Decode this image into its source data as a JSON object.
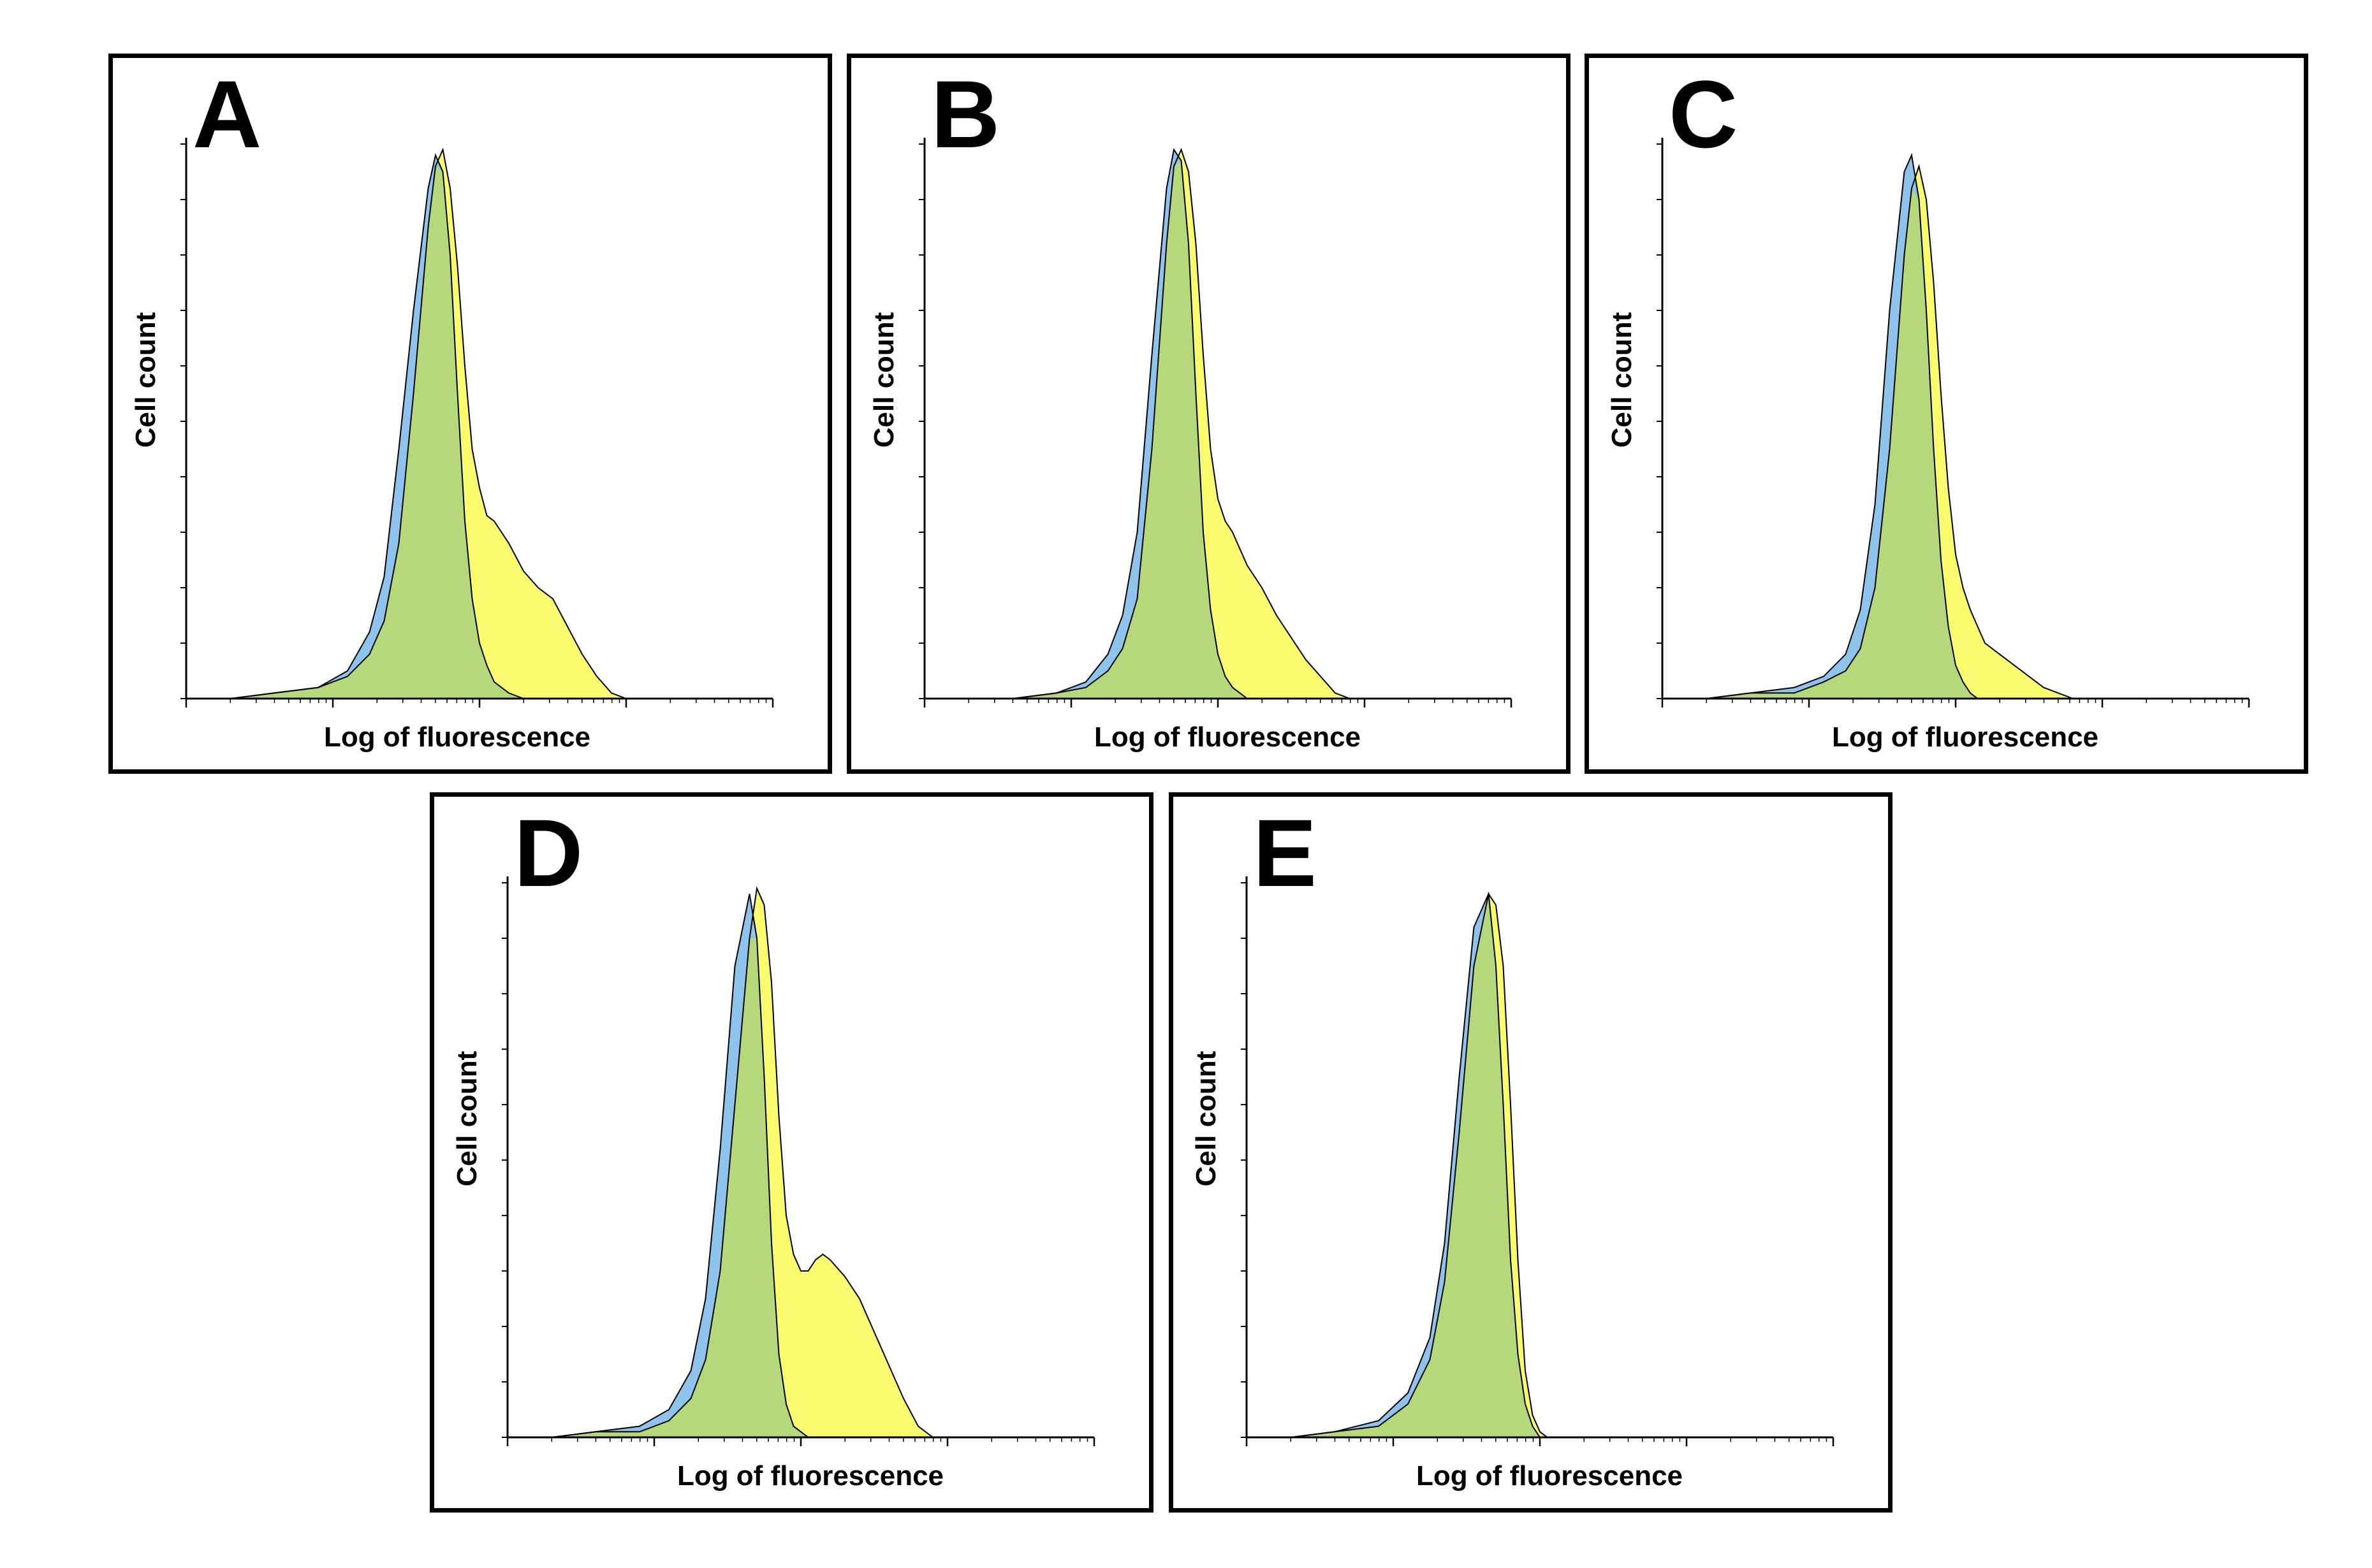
{
  "colors": {
    "control_fill": "#8ec3ec",
    "sample_fill": "#fafa6e",
    "overlap_fill": "#b5d97a",
    "outline": "#000000",
    "frame": "#000000"
  },
  "chart_data": [
    {
      "type": "area",
      "panel": "A",
      "xlabel": "Log of fluorescence",
      "ylabel": "Cell count",
      "x_scale": "log",
      "xlim": [
        0,
        4
      ],
      "ylim": [
        0,
        100
      ],
      "series": [
        {
          "role": "control",
          "x": [
            0.0,
            0.3,
            0.6,
            0.9,
            1.1,
            1.25,
            1.35,
            1.45,
            1.55,
            1.65,
            1.7,
            1.75,
            1.8,
            1.85,
            1.9,
            1.95,
            2.0,
            2.05,
            2.1,
            2.15,
            2.2,
            2.3,
            2.4,
            2.5,
            2.6,
            2.7,
            2.8,
            2.9,
            3.0,
            4.0
          ],
          "y": [
            0,
            0,
            1,
            2,
            5,
            12,
            22,
            45,
            70,
            92,
            98,
            95,
            80,
            55,
            32,
            18,
            10,
            6,
            3,
            2,
            1,
            0,
            0,
            0,
            0,
            0,
            0,
            0,
            0,
            0
          ]
        },
        {
          "role": "sample",
          "x": [
            0.0,
            0.3,
            0.6,
            0.9,
            1.1,
            1.25,
            1.35,
            1.45,
            1.55,
            1.65,
            1.7,
            1.75,
            1.8,
            1.85,
            1.9,
            1.95,
            2.0,
            2.05,
            2.1,
            2.15,
            2.2,
            2.3,
            2.4,
            2.5,
            2.6,
            2.7,
            2.8,
            2.9,
            3.0,
            4.0
          ],
          "y": [
            0,
            0,
            1,
            2,
            4,
            8,
            14,
            28,
            55,
            85,
            96,
            99,
            92,
            78,
            60,
            45,
            38,
            33,
            32,
            30,
            28,
            23,
            20,
            18,
            13,
            8,
            4,
            1,
            0,
            0
          ]
        }
      ]
    },
    {
      "type": "area",
      "panel": "B",
      "xlabel": "Log of fluorescence",
      "ylabel": "Cell count",
      "x_scale": "log",
      "xlim": [
        0,
        4
      ],
      "ylim": [
        0,
        100
      ],
      "series": [
        {
          "role": "control",
          "x": [
            0.0,
            0.3,
            0.6,
            0.9,
            1.1,
            1.25,
            1.35,
            1.45,
            1.55,
            1.65,
            1.7,
            1.75,
            1.8,
            1.85,
            1.9,
            1.95,
            2.0,
            2.05,
            2.1,
            2.15,
            2.2,
            2.3,
            2.4,
            2.5,
            2.6,
            2.7,
            2.8,
            2.9,
            3.0,
            4.0
          ],
          "y": [
            0,
            0,
            0,
            1,
            3,
            8,
            15,
            30,
            62,
            92,
            99,
            97,
            82,
            55,
            30,
            16,
            8,
            4,
            2,
            1,
            0,
            0,
            0,
            0,
            0,
            0,
            0,
            0,
            0,
            0
          ]
        },
        {
          "role": "sample",
          "x": [
            0.0,
            0.3,
            0.6,
            0.9,
            1.1,
            1.25,
            1.35,
            1.45,
            1.55,
            1.65,
            1.7,
            1.75,
            1.8,
            1.85,
            1.9,
            1.95,
            2.0,
            2.05,
            2.1,
            2.15,
            2.2,
            2.3,
            2.4,
            2.5,
            2.6,
            2.7,
            2.8,
            2.9,
            3.0,
            4.0
          ],
          "y": [
            0,
            0,
            0,
            1,
            2,
            5,
            9,
            18,
            45,
            82,
            96,
            99,
            95,
            82,
            62,
            45,
            36,
            32,
            30,
            27,
            24,
            20,
            15,
            11,
            7,
            4,
            1,
            0,
            0,
            0
          ]
        }
      ]
    },
    {
      "type": "area",
      "panel": "C",
      "xlabel": "Log of fluorescence",
      "ylabel": "Cell count",
      "x_scale": "log",
      "xlim": [
        0,
        4
      ],
      "ylim": [
        0,
        100
      ],
      "series": [
        {
          "role": "control",
          "x": [
            0.0,
            0.3,
            0.6,
            0.9,
            1.1,
            1.25,
            1.35,
            1.45,
            1.55,
            1.65,
            1.7,
            1.75,
            1.8,
            1.85,
            1.9,
            1.95,
            2.0,
            2.05,
            2.1,
            2.15,
            2.2,
            2.3,
            2.4,
            2.5,
            2.6,
            2.7,
            2.8,
            2.9,
            3.0,
            4.0
          ],
          "y": [
            0,
            0,
            1,
            2,
            4,
            8,
            16,
            35,
            70,
            95,
            98,
            90,
            70,
            45,
            25,
            13,
            6,
            3,
            1,
            0,
            0,
            0,
            0,
            0,
            0,
            0,
            0,
            0,
            0,
            0
          ]
        },
        {
          "role": "sample",
          "x": [
            0.0,
            0.3,
            0.6,
            0.9,
            1.1,
            1.25,
            1.35,
            1.45,
            1.55,
            1.65,
            1.7,
            1.75,
            1.8,
            1.85,
            1.9,
            1.95,
            2.0,
            2.05,
            2.1,
            2.15,
            2.2,
            2.3,
            2.4,
            2.5,
            2.6,
            2.7,
            2.8,
            2.9,
            3.0,
            4.0
          ],
          "y": [
            0,
            0,
            1,
            1,
            3,
            5,
            9,
            20,
            45,
            80,
            92,
            96,
            90,
            75,
            55,
            38,
            26,
            20,
            16,
            13,
            10,
            8,
            6,
            4,
            2,
            1,
            0,
            0,
            0,
            0
          ]
        }
      ]
    },
    {
      "type": "area",
      "panel": "D",
      "xlabel": "Log of fluorescence",
      "ylabel": "Cell count",
      "x_scale": "log",
      "xlim": [
        0,
        4
      ],
      "ylim": [
        0,
        100
      ],
      "series": [
        {
          "role": "control",
          "x": [
            0.0,
            0.3,
            0.6,
            0.9,
            1.1,
            1.25,
            1.35,
            1.45,
            1.55,
            1.65,
            1.7,
            1.75,
            1.8,
            1.85,
            1.9,
            1.95,
            2.0,
            2.05,
            2.1,
            2.15,
            2.2,
            2.3,
            2.4,
            2.5,
            2.6,
            2.7,
            2.8,
            2.9,
            3.0,
            4.0
          ],
          "y": [
            0,
            0,
            1,
            2,
            5,
            12,
            25,
            52,
            85,
            98,
            90,
            65,
            35,
            15,
            6,
            2,
            1,
            0,
            0,
            0,
            0,
            0,
            0,
            0,
            0,
            0,
            0,
            0,
            0,
            0
          ]
        },
        {
          "role": "sample",
          "x": [
            0.0,
            0.3,
            0.6,
            0.9,
            1.1,
            1.25,
            1.35,
            1.45,
            1.55,
            1.65,
            1.7,
            1.75,
            1.8,
            1.85,
            1.9,
            1.95,
            2.0,
            2.05,
            2.1,
            2.15,
            2.2,
            2.3,
            2.4,
            2.5,
            2.6,
            2.7,
            2.8,
            2.9,
            3.0,
            4.0
          ],
          "y": [
            0,
            0,
            1,
            1,
            3,
            7,
            14,
            30,
            60,
            90,
            99,
            96,
            82,
            58,
            40,
            33,
            30,
            30,
            32,
            33,
            32,
            29,
            25,
            19,
            13,
            7,
            2,
            0,
            0,
            0
          ]
        }
      ]
    },
    {
      "type": "area",
      "panel": "E",
      "xlabel": "Log of fluorescence",
      "ylabel": "Cell count",
      "x_scale": "log",
      "xlim": [
        0,
        4
      ],
      "ylim": [
        0,
        100
      ],
      "series": [
        {
          "role": "control",
          "x": [
            0.0,
            0.3,
            0.6,
            0.9,
            1.1,
            1.25,
            1.35,
            1.45,
            1.55,
            1.65,
            1.7,
            1.75,
            1.8,
            1.85,
            1.9,
            1.95,
            2.0,
            2.05,
            2.1,
            2.15,
            2.2,
            2.3,
            2.4,
            2.5,
            2.6,
            2.7,
            2.8,
            2.9,
            3.0,
            4.0
          ],
          "y": [
            0,
            0,
            1,
            3,
            8,
            18,
            35,
            65,
            92,
            98,
            85,
            60,
            32,
            15,
            6,
            2,
            0,
            0,
            0,
            0,
            0,
            0,
            0,
            0,
            0,
            0,
            0,
            0,
            0,
            0
          ]
        },
        {
          "role": "sample",
          "x": [
            0.0,
            0.3,
            0.6,
            0.9,
            1.1,
            1.25,
            1.35,
            1.45,
            1.55,
            1.65,
            1.7,
            1.75,
            1.8,
            1.85,
            1.9,
            1.95,
            2.0,
            2.05,
            2.1,
            2.15,
            2.2,
            2.3,
            2.4,
            2.5,
            2.6,
            2.7,
            2.8,
            2.9,
            3.0,
            4.0
          ],
          "y": [
            0,
            0,
            1,
            2,
            6,
            14,
            28,
            55,
            85,
            98,
            96,
            85,
            60,
            32,
            12,
            4,
            1,
            0,
            0,
            0,
            0,
            0,
            0,
            0,
            0,
            0,
            0,
            0,
            0,
            0
          ]
        }
      ]
    }
  ]
}
